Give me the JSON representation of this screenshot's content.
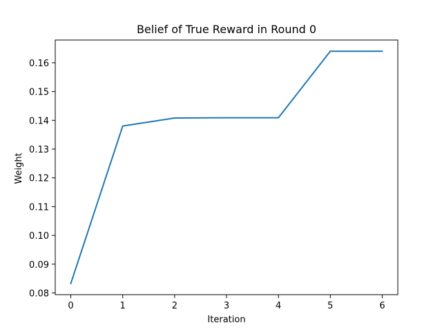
{
  "chart_data": {
    "type": "line",
    "title": "Belief of True Reward in Round 0",
    "xlabel": "Iteration",
    "ylabel": "Weight",
    "x": [
      0,
      1,
      2,
      3,
      4,
      5,
      6
    ],
    "series": [
      {
        "values": [
          0.0833,
          0.138,
          0.1408,
          0.1409,
          0.1409,
          0.164,
          0.164
        ],
        "color": "#1f77b4"
      }
    ],
    "xlim": [
      -0.3,
      6.3
    ],
    "ylim": [
      0.0794,
      0.1679
    ],
    "xticks": [
      "0",
      "1",
      "2",
      "3",
      "4",
      "5",
      "6"
    ],
    "yticks": [
      "0.08",
      "0.09",
      "0.10",
      "0.11",
      "0.12",
      "0.13",
      "0.14",
      "0.15",
      "0.16"
    ],
    "grid": false,
    "legend": "none"
  }
}
